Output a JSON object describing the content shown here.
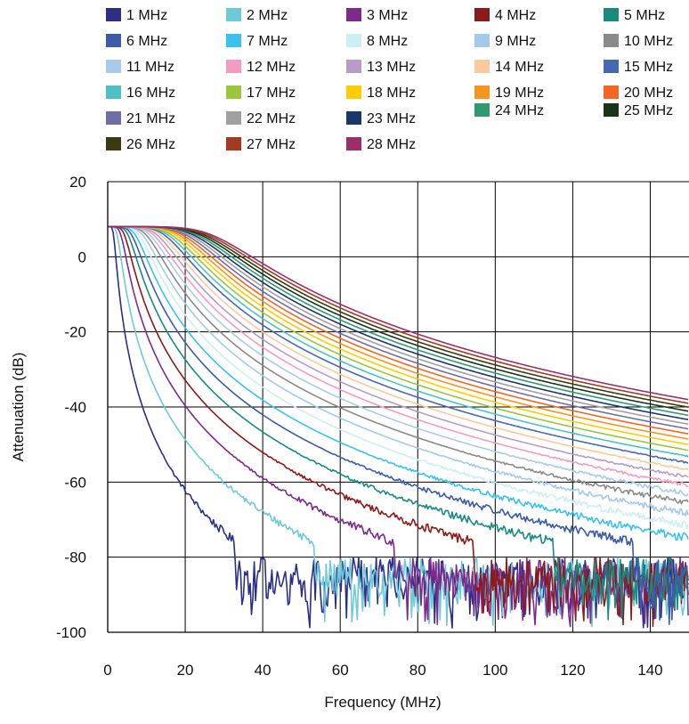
{
  "chart_data": {
    "type": "line",
    "title": "",
    "xlabel": "Frequency (MHz)",
    "ylabel": "Attenuation (dB)",
    "xlim": [
      0,
      150
    ],
    "ylim": [
      -100,
      20
    ],
    "x_ticks": [
      0,
      20,
      40,
      60,
      80,
      100,
      120,
      140
    ],
    "y_ticks": [
      20,
      0,
      -20,
      -40,
      -60,
      -80,
      -100
    ],
    "grid": true,
    "legend": {
      "placement": "top",
      "columns": 5
    },
    "passband_gain_db": 8,
    "noise_floor_db": [
      -80,
      -100
    ],
    "series": [
      {
        "name": "1 MHz",
        "cutoff_mhz": 1,
        "color": "#2b2f86"
      },
      {
        "name": "2 MHz",
        "cutoff_mhz": 2,
        "color": "#6ec9d8"
      },
      {
        "name": "3 MHz",
        "cutoff_mhz": 3,
        "color": "#7d2a8a"
      },
      {
        "name": "4 MHz",
        "cutoff_mhz": 4,
        "color": "#8b1a1a"
      },
      {
        "name": "5 MHz",
        "cutoff_mhz": 5,
        "color": "#1a8a80"
      },
      {
        "name": "6 MHz",
        "cutoff_mhz": 6,
        "color": "#3b5ba8"
      },
      {
        "name": "7 MHz",
        "cutoff_mhz": 7,
        "color": "#39c1ef"
      },
      {
        "name": "8 MHz",
        "cutoff_mhz": 8,
        "color": "#cdeef2"
      },
      {
        "name": "9 MHz",
        "cutoff_mhz": 9,
        "color": "#a3c9ec"
      },
      {
        "name": "10 MHz",
        "cutoff_mhz": 10,
        "color": "#8a8a8a"
      },
      {
        "name": "11 MHz",
        "cutoff_mhz": 11,
        "color": "#a9cbe9"
      },
      {
        "name": "12 MHz",
        "cutoff_mhz": 12,
        "color": "#f29cc2"
      },
      {
        "name": "13 MHz",
        "cutoff_mhz": 13,
        "color": "#b79cc7"
      },
      {
        "name": "14 MHz",
        "cutoff_mhz": 14,
        "color": "#fbc99f"
      },
      {
        "name": "15 MHz",
        "cutoff_mhz": 15,
        "color": "#4668b2"
      },
      {
        "name": "16 MHz",
        "cutoff_mhz": 16,
        "color": "#4fc1c2"
      },
      {
        "name": "17 MHz",
        "cutoff_mhz": 17,
        "color": "#9ac53d"
      },
      {
        "name": "18 MHz",
        "cutoff_mhz": 18,
        "color": "#ffcc00"
      },
      {
        "name": "19 MHz",
        "cutoff_mhz": 19,
        "color": "#f7941d"
      },
      {
        "name": "20 MHz",
        "cutoff_mhz": 20,
        "color": "#f26522"
      },
      {
        "name": "21 MHz",
        "cutoff_mhz": 21,
        "color": "#6f6fa6"
      },
      {
        "name": "22 MHz",
        "cutoff_mhz": 22,
        "color": "#a0a0a0"
      },
      {
        "name": "23 MHz",
        "cutoff_mhz": 23,
        "color": "#1b3668"
      },
      {
        "name": "24 MHz",
        "cutoff_mhz": 24,
        "color": "#2f9a6f"
      },
      {
        "name": "25 MHz",
        "cutoff_mhz": 25,
        "color": "#1c3318"
      },
      {
        "name": "26 MHz",
        "cutoff_mhz": 26,
        "color": "#3a3b14"
      },
      {
        "name": "27 MHz",
        "cutoff_mhz": 27,
        "color": "#a33a22"
      },
      {
        "name": "28 MHz",
        "cutoff_mhz": 28,
        "color": "#9b2f6a"
      }
    ]
  }
}
